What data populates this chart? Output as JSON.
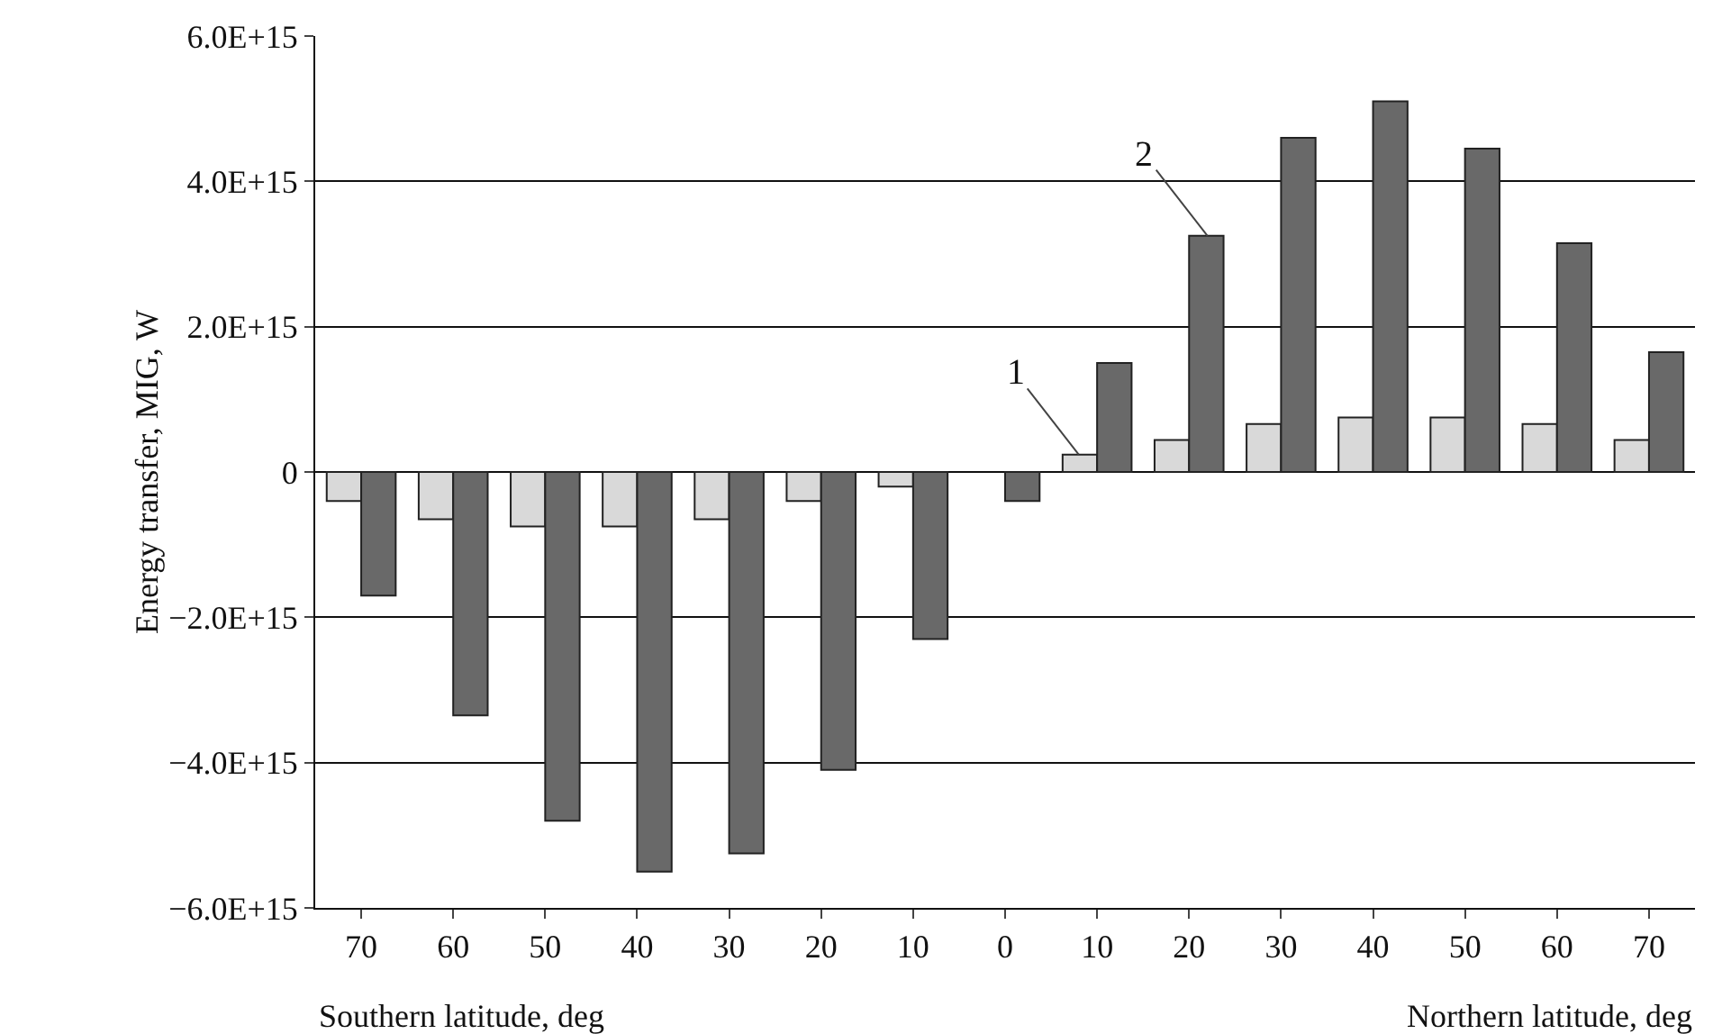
{
  "chart_data": {
    "type": "bar",
    "ylabel": "Energy transfer, MIG, W",
    "categories": [
      "70",
      "60",
      "50",
      "40",
      "30",
      "20",
      "10",
      "0",
      "10",
      "20",
      "30",
      "40",
      "50",
      "60",
      "70"
    ],
    "series": [
      {
        "name": "1",
        "color": "#d9d9d9",
        "values": [
          -400000000000000.0,
          -650000000000000.0,
          -750000000000000.0,
          -750000000000000.0,
          -650000000000000.0,
          -400000000000000.0,
          -200000000000000.0,
          0,
          240000000000000.0,
          440000000000000.0,
          660000000000000.0,
          750000000000000.0,
          750000000000000.0,
          660000000000000.0,
          440000000000000.0
        ]
      },
      {
        "name": "2",
        "color": "#696969",
        "values": [
          -1700000000000000.0,
          -3350000000000000.0,
          -4800000000000000.0,
          -5500000000000000.0,
          -5250000000000000.0,
          -4100000000000000.0,
          -2300000000000000.0,
          -400000000000000.0,
          1500000000000000.0,
          3250000000000000.0,
          4600000000000000.0,
          5100000000000000.0,
          4450000000000000.0,
          3150000000000000.0,
          1650000000000000.0
        ]
      }
    ],
    "ylim": [
      -6000000000000000.0,
      6000000000000000.0
    ],
    "yticks": [
      {
        "value": -6000000000000000.0,
        "label": "−6.0E+15"
      },
      {
        "value": -4000000000000000.0,
        "label": "−4.0E+15"
      },
      {
        "value": -2000000000000000.0,
        "label": "−2.0E+15"
      },
      0,
      {
        "value": 2000000000000000.0,
        "label": "2.0E+15"
      },
      {
        "value": 4000000000000000.0,
        "label": "4.0E+15"
      },
      {
        "value": 6000000000000000.0,
        "label": "6.0E+15"
      }
    ],
    "grid": "y",
    "legend": false,
    "annotations": [
      "Southern latitude, deg",
      "Northern latitude, deg"
    ]
  }
}
